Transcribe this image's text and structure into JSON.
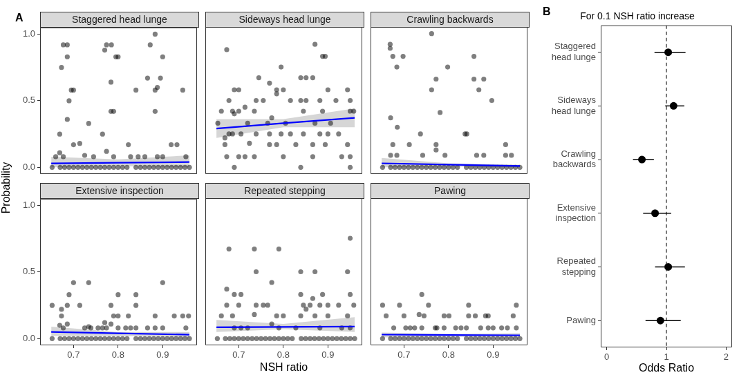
{
  "chart_data": [
    {
      "type": "scatter",
      "title": "Staggered head lunge",
      "ylabel": "Probability",
      "annotations": [
        "A"
      ],
      "tick_labels": "y",
      "xlim": [
        0.625,
        0.977
      ],
      "ylim": [
        -0.05,
        1.05
      ],
      "yticks": [
        {
          "value": 0,
          "label": "0.0"
        },
        {
          "value": 0.5,
          "label": "0.5"
        },
        {
          "value": 1,
          "label": "1.0"
        }
      ],
      "series": [
        {
          "type": "scatter",
          "marker": "circle",
          "color": "#000000",
          "x": [
            0.66,
            0.669,
            0.669,
            0.673,
            0.677,
            0.686,
            0.686,
            0.686,
            0.677,
            0.69,
            0.695,
            0.7,
            0.7,
            0.714,
            0.725,
            0.734,
            0.745,
            0.765,
            0.77,
            0.774,
            0.785,
            0.774,
            0.784,
            0.784,
            0.79,
            0.795,
            0.8,
            0.79,
            0.823,
            0.828,
            0.84,
            0.845,
            0.86,
            0.866,
            0.872,
            0.883,
            0.883,
            0.883,
            0.888,
            0.895,
            0.9,
            0.9,
            0.888,
            0.919,
            0.932,
            0.945,
            0.952,
            0.652,
            0.67,
            0.68,
            0.69,
            0.7,
            0.71,
            0.72,
            0.73,
            0.74,
            0.75,
            0.76,
            0.77,
            0.78,
            0.79,
            0.8,
            0.81,
            0.82,
            0.84,
            0.85,
            0.86,
            0.87,
            0.88,
            0.89,
            0.9,
            0.91,
            0.92,
            0.93,
            0.94,
            0.95,
            0.96
          ],
          "values": [
            0.08,
            0.25,
            0.11,
            0.75,
            0.92,
            0.92,
            0.83,
            0.36,
            0.08,
            0.5,
            0.58,
            0.58,
            0.17,
            0.18,
            0.09,
            0.33,
            0.08,
            0.25,
            0.88,
            0.92,
            0.92,
            0.12,
            0.64,
            0.42,
            0.42,
            0.83,
            0.83,
            0.08,
            0.17,
            0.08,
            0.58,
            0.08,
            0.08,
            0.67,
            0.92,
            1.0,
            0.58,
            0.42,
            0.6,
            0.67,
            0.83,
            0.08,
            0.08,
            0.17,
            0.17,
            0.58,
            0.08,
            0,
            0,
            0,
            0,
            0,
            0,
            0,
            0,
            0,
            0,
            0,
            0,
            0,
            0,
            0,
            0,
            0,
            0,
            0,
            0,
            0,
            0,
            0,
            0,
            0,
            0,
            0,
            0,
            0,
            0
          ]
        },
        {
          "type": "line",
          "marker": "none",
          "color": "#0000ff",
          "x": [
            0.65,
            0.8,
            0.96
          ],
          "values": [
            0.03,
            0.035,
            0.04
          ],
          "lower": [
            0.0,
            0.01,
            0.0
          ],
          "upper": [
            0.08,
            0.06,
            0.09
          ]
        }
      ]
    },
    {
      "type": "scatter",
      "title": "Sideways head lunge",
      "tick_labels": false,
      "xlim": [
        0.625,
        0.977
      ],
      "ylim": [
        -0.05,
        1.05
      ],
      "series": [
        {
          "type": "scatter",
          "marker": "circle",
          "color": "#000000",
          "x": [
            0.653,
            0.661,
            0.669,
            0.673,
            0.669,
            0.678,
            0.673,
            0.678,
            0.686,
            0.686,
            0.69,
            0.69,
            0.69,
            0.7,
            0.7,
            0.7,
            0.705,
            0.714,
            0.714,
            0.72,
            0.724,
            0.735,
            0.735,
            0.739,
            0.739,
            0.745,
            0.755,
            0.765,
            0.769,
            0.774,
            0.769,
            0.769,
            0.785,
            0.785,
            0.785,
            0.795,
            0.795,
            0.8,
            0.8,
            0.805,
            0.816,
            0.816,
            0.828,
            0.839,
            0.839,
            0.839,
            0.845,
            0.845,
            0.851,
            0.851,
            0.866,
            0.866,
            0.866,
            0.871,
            0.871,
            0.882,
            0.882,
            0.888,
            0.894,
            0.888,
            0.894,
            0.9,
            0.9,
            0.906,
            0.918,
            0.924,
            0.931,
            0.944,
            0.944,
            0.95,
            0.95,
            0.95,
            0.95,
            0.958
          ],
          "values": [
            0.33,
            0.42,
            0.22,
            0.88,
            0.17,
            0.5,
            0.08,
            0.25,
            0.25,
            0.42,
            0.4,
            0,
            0.58,
            0.58,
            0.42,
            0.08,
            0.25,
            0.45,
            0.08,
            0.33,
            0.18,
            0.42,
            0.08,
            0.5,
            0.25,
            0.67,
            0.5,
            0.33,
            0.63,
            0.37,
            0.25,
            0.17,
            0.58,
            0.55,
            0.17,
            0.75,
            0.25,
            0.58,
            0.08,
            0.33,
            0.5,
            0.25,
            0.17,
            0.67,
            0.5,
            0,
            0.42,
            0.25,
            0.67,
            0.5,
            0.67,
            0.17,
            0.08,
            0.92,
            0.33,
            0.5,
            0.25,
            0.83,
            0.83,
            0.42,
            0.17,
            0.58,
            0.25,
            0.33,
            0.5,
            0.25,
            0.08,
            0.58,
            0.17,
            0.5,
            0.42,
            0.08,
            0,
            0.42
          ]
        },
        {
          "type": "line",
          "marker": "none",
          "color": "#0000ff",
          "x": [
            0.65,
            0.8,
            0.96
          ],
          "values": [
            0.29,
            0.33,
            0.37
          ],
          "lower": [
            0.22,
            0.3,
            0.3
          ],
          "upper": [
            0.36,
            0.36,
            0.44
          ]
        }
      ]
    },
    {
      "type": "scatter",
      "title": "Crawling backwards",
      "tick_labels": false,
      "xlim": [
        0.625,
        0.977
      ],
      "ylim": [
        -0.05,
        1.05
      ],
      "series": [
        {
          "type": "scatter",
          "marker": "circle",
          "color": "#000000",
          "x": [
            0.669,
            0.669,
            0.675,
            0.698,
            0.684,
            0.67,
            0.685,
            0.675,
            0.712,
            0.67,
            0.684,
            0.737,
            0.742,
            0.762,
            0.762,
            0.772,
            0.781,
            0.772,
            0.772,
            0.792,
            0.798,
            0.837,
            0.841,
            0.857,
            0.857,
            0.879,
            0.868,
            0.897,
            0.863,
            0.879,
            0.928,
            0.928,
            0.941,
            0.652,
            0.67,
            0.68,
            0.69,
            0.7,
            0.71,
            0.72,
            0.73,
            0.74,
            0.75,
            0.76,
            0.77,
            0.78,
            0.79,
            0.8,
            0.81,
            0.82,
            0.84,
            0.85,
            0.86,
            0.87,
            0.88,
            0.89,
            0.9,
            0.91,
            0.92,
            0.93,
            0.94,
            0.95,
            0.96
          ],
          "values": [
            0.92,
            0.89,
            0.83,
            0.83,
            0.75,
            0.37,
            0.3,
            0.17,
            0.17,
            0.09,
            0.09,
            0.25,
            0.09,
            1.0,
            0.58,
            0.66,
            0.41,
            0.17,
            0.13,
            0.09,
            0.75,
            0.25,
            0.25,
            0.83,
            0.66,
            0.66,
            0.58,
            0.5,
            0.09,
            0.09,
            0.17,
            0.09,
            0.09,
            0,
            0,
            0,
            0,
            0,
            0,
            0,
            0,
            0,
            0,
            0,
            0,
            0,
            0,
            0,
            0,
            0,
            0,
            0,
            0,
            0,
            0,
            0,
            0,
            0,
            0,
            0,
            0,
            0,
            0
          ]
        },
        {
          "type": "line",
          "marker": "none",
          "color": "#0000ff",
          "x": [
            0.65,
            0.8,
            0.96
          ],
          "values": [
            0.03,
            0.02,
            0.01
          ],
          "lower": [
            0.0,
            0.005,
            0.0
          ],
          "upper": [
            0.07,
            0.03,
            0.02
          ]
        }
      ]
    },
    {
      "type": "scatter",
      "title": "Extensive inspection",
      "xlim": [
        0.625,
        0.977
      ],
      "xticks": [
        0.7,
        0.8,
        0.9
      ],
      "ylim": [
        -0.05,
        1.05
      ],
      "yticks": [
        {
          "value": 0,
          "label": "0.0"
        },
        {
          "value": 0.5,
          "label": "0.5"
        },
        {
          "value": 1,
          "label": "1.0"
        }
      ],
      "series": [
        {
          "type": "scatter",
          "marker": "circle",
          "color": "#000000",
          "x": [
            0.652,
            0.669,
            0.673,
            0.673,
            0.677,
            0.686,
            0.686,
            0.69,
            0.7,
            0.714,
            0.725,
            0.734,
            0.734,
            0.739,
            0.755,
            0.765,
            0.77,
            0.774,
            0.784,
            0.784,
            0.79,
            0.8,
            0.8,
            0.8,
            0.817,
            0.823,
            0.828,
            0.84,
            0.84,
            0.84,
            0.866,
            0.883,
            0.883,
            0.9,
            0.9,
            0.926,
            0.945,
            0.958,
            0.952,
            0.652,
            0.67,
            0.68,
            0.69,
            0.7,
            0.71,
            0.72,
            0.73,
            0.74,
            0.75,
            0.76,
            0.77,
            0.78,
            0.79,
            0.8,
            0.81,
            0.82,
            0.84,
            0.85,
            0.86,
            0.87,
            0.88,
            0.89,
            0.9,
            0.91,
            0.92,
            0.93,
            0.94,
            0.95,
            0.96
          ],
          "values": [
            0.25,
            0.1,
            0.22,
            0.17,
            0.08,
            0.25,
            0.11,
            0.33,
            0.42,
            0.25,
            0.08,
            0.42,
            0.09,
            0.08,
            0.08,
            0.08,
            0.12,
            0.08,
            0.25,
            0.11,
            0.17,
            0.33,
            0.17,
            0.08,
            0.08,
            0.17,
            0.08,
            0.33,
            0.25,
            0.08,
            0.08,
            0.17,
            0.08,
            0.42,
            0.08,
            0.17,
            0.17,
            0.17,
            0.08,
            0,
            0,
            0,
            0,
            0,
            0,
            0,
            0,
            0,
            0,
            0,
            0,
            0,
            0,
            0,
            0,
            0,
            0,
            0,
            0,
            0,
            0,
            0,
            0,
            0,
            0,
            0,
            0,
            0,
            0
          ]
        },
        {
          "type": "line",
          "marker": "none",
          "color": "#0000ff",
          "x": [
            0.65,
            0.8,
            0.96
          ],
          "values": [
            0.05,
            0.04,
            0.03
          ],
          "lower": [
            0.02,
            0.02,
            0.01
          ],
          "upper": [
            0.09,
            0.05,
            0.05
          ]
        }
      ]
    },
    {
      "type": "scatter",
      "title": "Repeated stepping",
      "xlabel": "NSH ratio",
      "tick_labels": "x",
      "xlim": [
        0.625,
        0.977
      ],
      "xticks": [
        0.7,
        0.8,
        0.9
      ],
      "ylim": [
        -0.05,
        1.05
      ],
      "series": [
        {
          "type": "scatter",
          "marker": "circle",
          "color": "#000000",
          "x": [
            0.661,
            0.673,
            0.678,
            0.673,
            0.686,
            0.69,
            0.7,
            0.705,
            0.69,
            0.705,
            0.72,
            0.735,
            0.739,
            0.735,
            0.739,
            0.755,
            0.765,
            0.774,
            0.774,
            0.785,
            0.79,
            0.8,
            0.79,
            0.828,
            0.839,
            0.839,
            0.845,
            0.851,
            0.839,
            0.866,
            0.871,
            0.871,
            0.86,
            0.882,
            0.888,
            0.9,
            0.9,
            0.882,
            0.924,
            0.944,
            0.944,
            0.95,
            0.95,
            0.958,
            0.931,
            0.95,
            0.652,
            0.67,
            0.68,
            0.69,
            0.7,
            0.71,
            0.72,
            0.73,
            0.74,
            0.75,
            0.76,
            0.77,
            0.78,
            0.79,
            0.8,
            0.81,
            0.82,
            0.84,
            0.85,
            0.86,
            0.87,
            0.88,
            0.89,
            0.9,
            0.91,
            0.92,
            0.93,
            0.94,
            0.95,
            0.96
          ],
          "values": [
            0.17,
            0.37,
            0.67,
            0.25,
            0.17,
            0.33,
            0.25,
            0.33,
            0.08,
            0.08,
            0.08,
            0.67,
            0.5,
            0.18,
            0.25,
            0.25,
            0.25,
            0.42,
            0.11,
            0.17,
            0.67,
            0.17,
            0.08,
            0.08,
            0.5,
            0.33,
            0.25,
            0.22,
            0.17,
            0.3,
            0.5,
            0.17,
            0.25,
            0.25,
            0.33,
            0.17,
            0.25,
            0.08,
            0.25,
            0.5,
            0.17,
            0.75,
            0.33,
            0.25,
            0.08,
            0.08,
            0,
            0,
            0,
            0,
            0,
            0,
            0,
            0,
            0,
            0,
            0,
            0,
            0,
            0,
            0,
            0,
            0,
            0,
            0,
            0,
            0,
            0,
            0,
            0,
            0,
            0,
            0,
            0,
            0,
            0
          ]
        },
        {
          "type": "line",
          "marker": "none",
          "color": "#0000ff",
          "x": [
            0.65,
            0.8,
            0.96
          ],
          "values": [
            0.085,
            0.087,
            0.09
          ],
          "lower": [
            0.05,
            0.07,
            0.05
          ],
          "upper": [
            0.14,
            0.11,
            0.16
          ]
        }
      ]
    },
    {
      "type": "scatter",
      "title": "Pawing",
      "tick_labels": "x",
      "xlim": [
        0.625,
        0.977
      ],
      "xticks": [
        0.7,
        0.8,
        0.9
      ],
      "ylim": [
        -0.05,
        1.05
      ],
      "series": [
        {
          "type": "scatter",
          "marker": "circle",
          "color": "#000000",
          "x": [
            0.652,
            0.66,
            0.677,
            0.69,
            0.7,
            0.704,
            0.714,
            0.724,
            0.734,
            0.74,
            0.74,
            0.745,
            0.755,
            0.77,
            0.774,
            0.79,
            0.79,
            0.801,
            0.816,
            0.828,
            0.84,
            0.845,
            0.845,
            0.86,
            0.872,
            0.883,
            0.889,
            0.889,
            0.9,
            0.919,
            0.932,
            0.945,
            0.952,
            0.952,
            0.652,
            0.67,
            0.68,
            0.69,
            0.7,
            0.71,
            0.72,
            0.73,
            0.74,
            0.75,
            0.76,
            0.77,
            0.78,
            0.79,
            0.8,
            0.81,
            0.82,
            0.84,
            0.85,
            0.86,
            0.87,
            0.88,
            0.89,
            0.9,
            0.91,
            0.92,
            0.93,
            0.94,
            0.95,
            0.96
          ],
          "values": [
            0.25,
            0.17,
            0.08,
            0.25,
            0.17,
            0.08,
            0.08,
            0.08,
            0.18,
            0.33,
            0.08,
            0.17,
            0.25,
            0.08,
            0.08,
            0.17,
            0.08,
            0.17,
            0.08,
            0.08,
            0.08,
            0.25,
            0.17,
            0.17,
            0.08,
            0.17,
            0.17,
            0.08,
            0.08,
            0.08,
            0.08,
            0.17,
            0.25,
            0.08,
            0,
            0,
            0,
            0,
            0,
            0,
            0,
            0,
            0,
            0,
            0,
            0,
            0,
            0,
            0,
            0,
            0,
            0,
            0,
            0,
            0,
            0,
            0,
            0,
            0,
            0,
            0,
            0,
            0,
            0
          ]
        },
        {
          "type": "line",
          "marker": "none",
          "color": "#0000ff",
          "x": [
            0.65,
            0.8,
            0.96
          ],
          "values": [
            0.03,
            0.027,
            0.025
          ],
          "lower": [
            0.01,
            0.015,
            0.01
          ],
          "upper": [
            0.045,
            0.035,
            0.04
          ]
        }
      ]
    },
    {
      "type": "scatter",
      "orientation": "horizontal",
      "title": "For 0.1 NSH ratio increase",
      "xlabel": "Odds Ratio",
      "annotations": [
        "B"
      ],
      "marker": "circle",
      "color": "#000000",
      "categories": [
        "Staggered head lunge",
        "Sideways head lunge",
        "Crawling backwards",
        "Extensive inspection",
        "Repeated stepping",
        "Pawing"
      ],
      "values": [
        1.03,
        1.12,
        0.59,
        0.81,
        1.03,
        0.9
      ],
      "errors": [
        [
          0.8,
          1.32
        ],
        [
          0.98,
          1.3
        ],
        [
          0.44,
          0.79
        ],
        [
          0.61,
          1.08
        ],
        [
          0.81,
          1.31
        ],
        [
          0.65,
          1.24
        ]
      ],
      "xlim": [
        -0.1,
        2.1
      ],
      "xticks": [
        0,
        1,
        2
      ],
      "ref_lines": [
        {
          "axis": "x",
          "value": 1,
          "line_style": "dashed"
        }
      ]
    }
  ]
}
